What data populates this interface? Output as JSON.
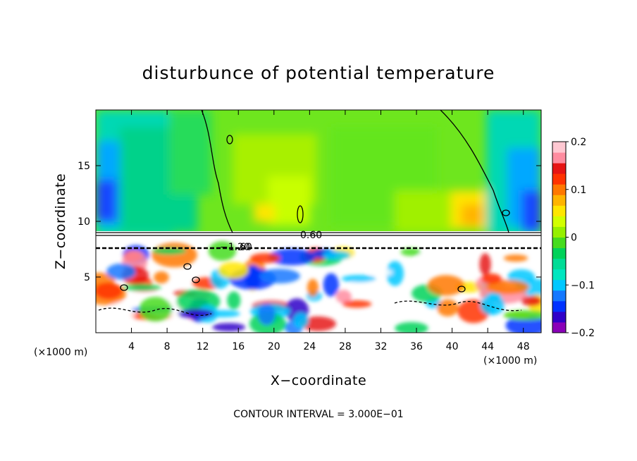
{
  "chart_data": {
    "type": "heatmap",
    "title": "disturbunce of potential temperature",
    "xlabel": "X−coordinate",
    "ylabel": "Z−coordinate",
    "x_unit": "(×1000 m)",
    "x_unit_right": "(×1000 m)",
    "xlim": [
      0,
      50
    ],
    "ylim": [
      0,
      20
    ],
    "x_ticks": [
      4,
      8,
      12,
      16,
      20,
      24,
      28,
      32,
      36,
      40,
      44,
      48
    ],
    "y_ticks": [
      5,
      10,
      15
    ],
    "colorbar": {
      "range": [
        -0.2,
        0.2
      ],
      "ticks": [
        {
          "value": 0.2,
          "label": "0.2"
        },
        {
          "value": 0.1,
          "label": "0.1"
        },
        {
          "value": 0,
          "label": "0"
        },
        {
          "value": -0.1,
          "label": "−0.1"
        },
        {
          "value": -0.2,
          "label": "−0.2"
        }
      ],
      "colors": [
        "#8a00b8",
        "#3000c8",
        "#0032ff",
        "#1478ff",
        "#00c8ff",
        "#00e6c0",
        "#00dc96",
        "#00d25a",
        "#46dc1e",
        "#96f000",
        "#d2ff00",
        "#ffe600",
        "#ffb400",
        "#ff7800",
        "#ff3200",
        "#e61414",
        "#ff8ca0",
        "#ffc8d2"
      ]
    },
    "contour_labels": [
      "0.60",
      "−1.20",
      "60"
    ],
    "contour_interval_text": "CONTOUR INTERVAL = 3.000E−01"
  }
}
